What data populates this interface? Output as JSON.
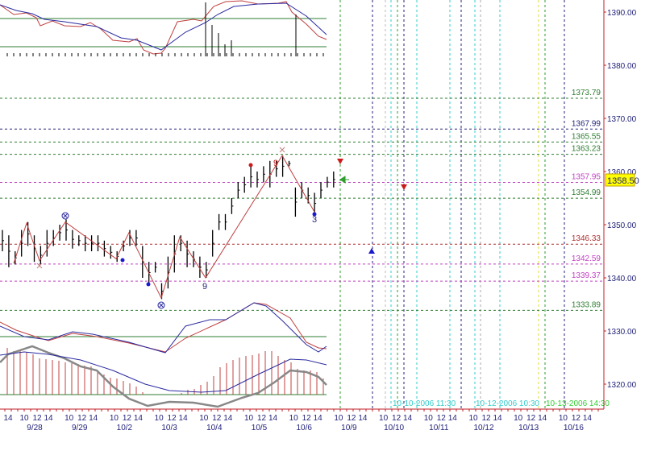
{
  "chart_data": {
    "type": "ohlc",
    "title": "",
    "colors": {
      "axis": "#c0202a",
      "axis_text": "#23237a",
      "bar": "#000000",
      "zigzag": "#c0404a",
      "current_price_bg": "#ffff00"
    },
    "yaxis": {
      "ticks": [
        "1320.00",
        "1330.00",
        "1340.00",
        "1350.00",
        "1360.00",
        "1370.00",
        "1380.00",
        "1390.00"
      ],
      "range": [
        1315,
        1392
      ]
    },
    "current_price": "1358.50",
    "xaxis": {
      "leading_hour": "14",
      "hours": [
        "10",
        "12",
        "14"
      ],
      "days": [
        "9/28",
        "9/29",
        "10/2",
        "10/3",
        "10/4",
        "10/5",
        "10/6",
        "10/9",
        "10/10",
        "10/11",
        "10/12",
        "10/13",
        "10/16"
      ]
    },
    "bars": [
      [
        1349,
        1345
      ],
      [
        1348,
        1342
      ],
      [
        1345,
        1342.5
      ],
      [
        1349,
        1344
      ],
      [
        1350.5,
        1346
      ],
      [
        1348,
        1343
      ],
      [
        1346,
        1342.5
      ],
      [
        1349,
        1344
      ],
      [
        1349,
        1346
      ],
      [
        1350,
        1347
      ],
      [
        1351,
        1347
      ],
      [
        1349,
        1345.5
      ],
      [
        1348,
        1346
      ],
      [
        1348,
        1345
      ],
      [
        1348,
        1345
      ],
      [
        1348,
        1345
      ],
      [
        1347,
        1344
      ],
      [
        1346,
        1343.6
      ],
      [
        1345,
        1343
      ],
      [
        1347,
        1345
      ],
      [
        1349,
        1346
      ],
      [
        1349,
        1346
      ],
      [
        1346,
        1340
      ],
      [
        1343,
        1339
      ],
      [
        1343,
        1341
      ],
      [
        1339,
        1336
      ],
      [
        1344,
        1338
      ],
      [
        1348,
        1341
      ],
      [
        1348,
        1345
      ],
      [
        1347,
        1342
      ],
      [
        1345,
        1342
      ],
      [
        1344,
        1340
      ],
      [
        1343,
        1340
      ],
      [
        1349,
        1344
      ],
      [
        1352,
        1349
      ],
      [
        1352,
        1349
      ],
      [
        1355,
        1352
      ],
      [
        1358,
        1355
      ],
      [
        1359,
        1356
      ],
      [
        1361,
        1357
      ],
      [
        1360,
        1357
      ],
      [
        1361,
        1358
      ],
      [
        1362,
        1357
      ],
      [
        1362,
        1359
      ],
      [
        1363,
        1359
      ],
      [
        1362,
        1361
      ],
      [
        1357,
        1351.5
      ],
      [
        1358,
        1355
      ],
      [
        1357,
        1354
      ],
      [
        1356,
        1352
      ],
      [
        1358,
        1355
      ],
      [
        1359,
        1357
      ],
      [
        1360,
        1357
      ]
    ],
    "zigzag": [
      1342.7,
      1350.3,
      1343.2,
      1350.5,
      1343.6,
      1348.5,
      1336.2,
      1347.7,
      1340,
      1363,
      1352.4
    ],
    "levels": [
      {
        "value": "1373.79",
        "color": "#2e7d32"
      },
      {
        "value": "1367.99",
        "color": "#23237a"
      },
      {
        "value": "1365.55",
        "color": "#2e7d32"
      },
      {
        "value": "1363.23",
        "color": "#2e7d32"
      },
      {
        "value": "1357.95",
        "color": "#c040c0"
      },
      {
        "value": "1354.99",
        "color": "#2e7d32"
      },
      {
        "value": "1346.33",
        "color": "#b03030"
      },
      {
        "value": "1342.59",
        "color": "#c040c0"
      },
      {
        "value": "1339.37",
        "color": "#c040c0"
      },
      {
        "value": "1333.89",
        "color": "#2e7d32"
      }
    ],
    "pattern_labels": {
      "nine_high": "9",
      "nine_low": "9",
      "three": "3"
    },
    "time_markers": [
      {
        "label": "10-10-2006 11:30",
        "color": "#33cccc"
      },
      {
        "label": "10-12-2006 10:30",
        "color": "#33cccc"
      },
      {
        "label": "10-13-2006 14:30",
        "color": "#33cc33"
      }
    ]
  }
}
